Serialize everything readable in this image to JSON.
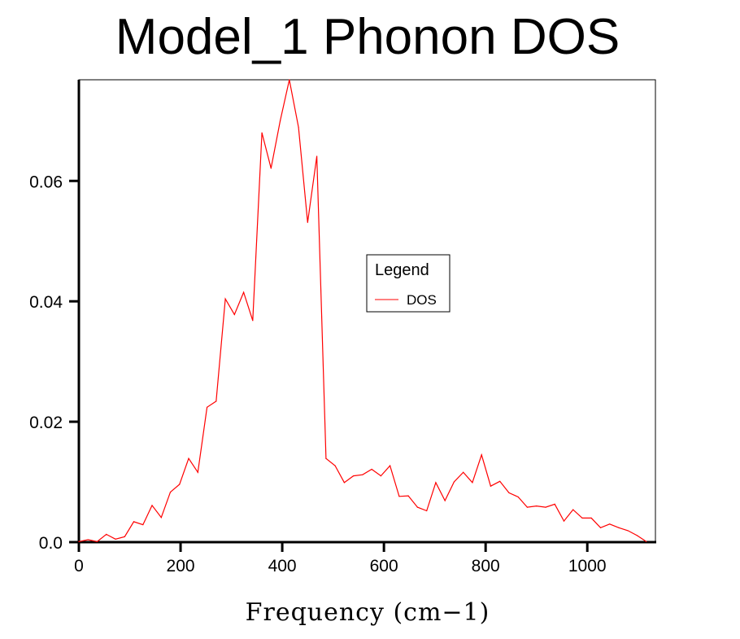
{
  "chart_data": {
    "type": "line",
    "title": "Model_1 Phonon DOS",
    "xlabel": "Frequency (cm−1)",
    "ylabel": "",
    "xlim": [
      0,
      1134
    ],
    "ylim": [
      0,
      0.0768
    ],
    "xticks": [
      0,
      200,
      400,
      600,
      800,
      1000
    ],
    "xtick_labels": [
      "0",
      "200",
      "400",
      "600",
      "800",
      "1000"
    ],
    "yticks": [
      0,
      0.02,
      0.04,
      0.06
    ],
    "ytick_labels": [
      "0.0",
      "0.02",
      "0.04",
      "0.06"
    ],
    "grid": false,
    "legend": {
      "title": "Legend",
      "placement": "center-right"
    },
    "series": [
      {
        "name": "DOS",
        "color": "#ff0000",
        "x": [
          0,
          18,
          36,
          54,
          72,
          90,
          108,
          126,
          144,
          162,
          180,
          198,
          216,
          234,
          252,
          270,
          288,
          306,
          324,
          342,
          360,
          378,
          396,
          414,
          432,
          450,
          468,
          486,
          504,
          522,
          540,
          558,
          576,
          594,
          612,
          630,
          648,
          666,
          684,
          702,
          720,
          738,
          756,
          774,
          792,
          810,
          828,
          846,
          864,
          882,
          900,
          918,
          936,
          954,
          972,
          990,
          1008,
          1026,
          1044,
          1062,
          1080,
          1098,
          1116
        ],
        "y": [
          0.0001,
          0.0004,
          0.0001,
          0.0013,
          0.0005,
          0.0009,
          0.0034,
          0.0029,
          0.0061,
          0.0041,
          0.0083,
          0.0096,
          0.0139,
          0.0116,
          0.0224,
          0.0234,
          0.0404,
          0.0378,
          0.0415,
          0.0368,
          0.068,
          0.0621,
          0.07,
          0.0768,
          0.0689,
          0.0531,
          0.0641,
          0.0139,
          0.0127,
          0.0099,
          0.011,
          0.0112,
          0.0121,
          0.011,
          0.0127,
          0.0076,
          0.0077,
          0.0058,
          0.0052,
          0.0099,
          0.0069,
          0.01,
          0.0116,
          0.0099,
          0.0145,
          0.0093,
          0.0101,
          0.0082,
          0.0075,
          0.0058,
          0.006,
          0.0058,
          0.0063,
          0.0035,
          0.0054,
          0.004,
          0.004,
          0.0024,
          0.003,
          0.0024,
          0.0019,
          0.0011,
          0.0001
        ]
      }
    ]
  }
}
